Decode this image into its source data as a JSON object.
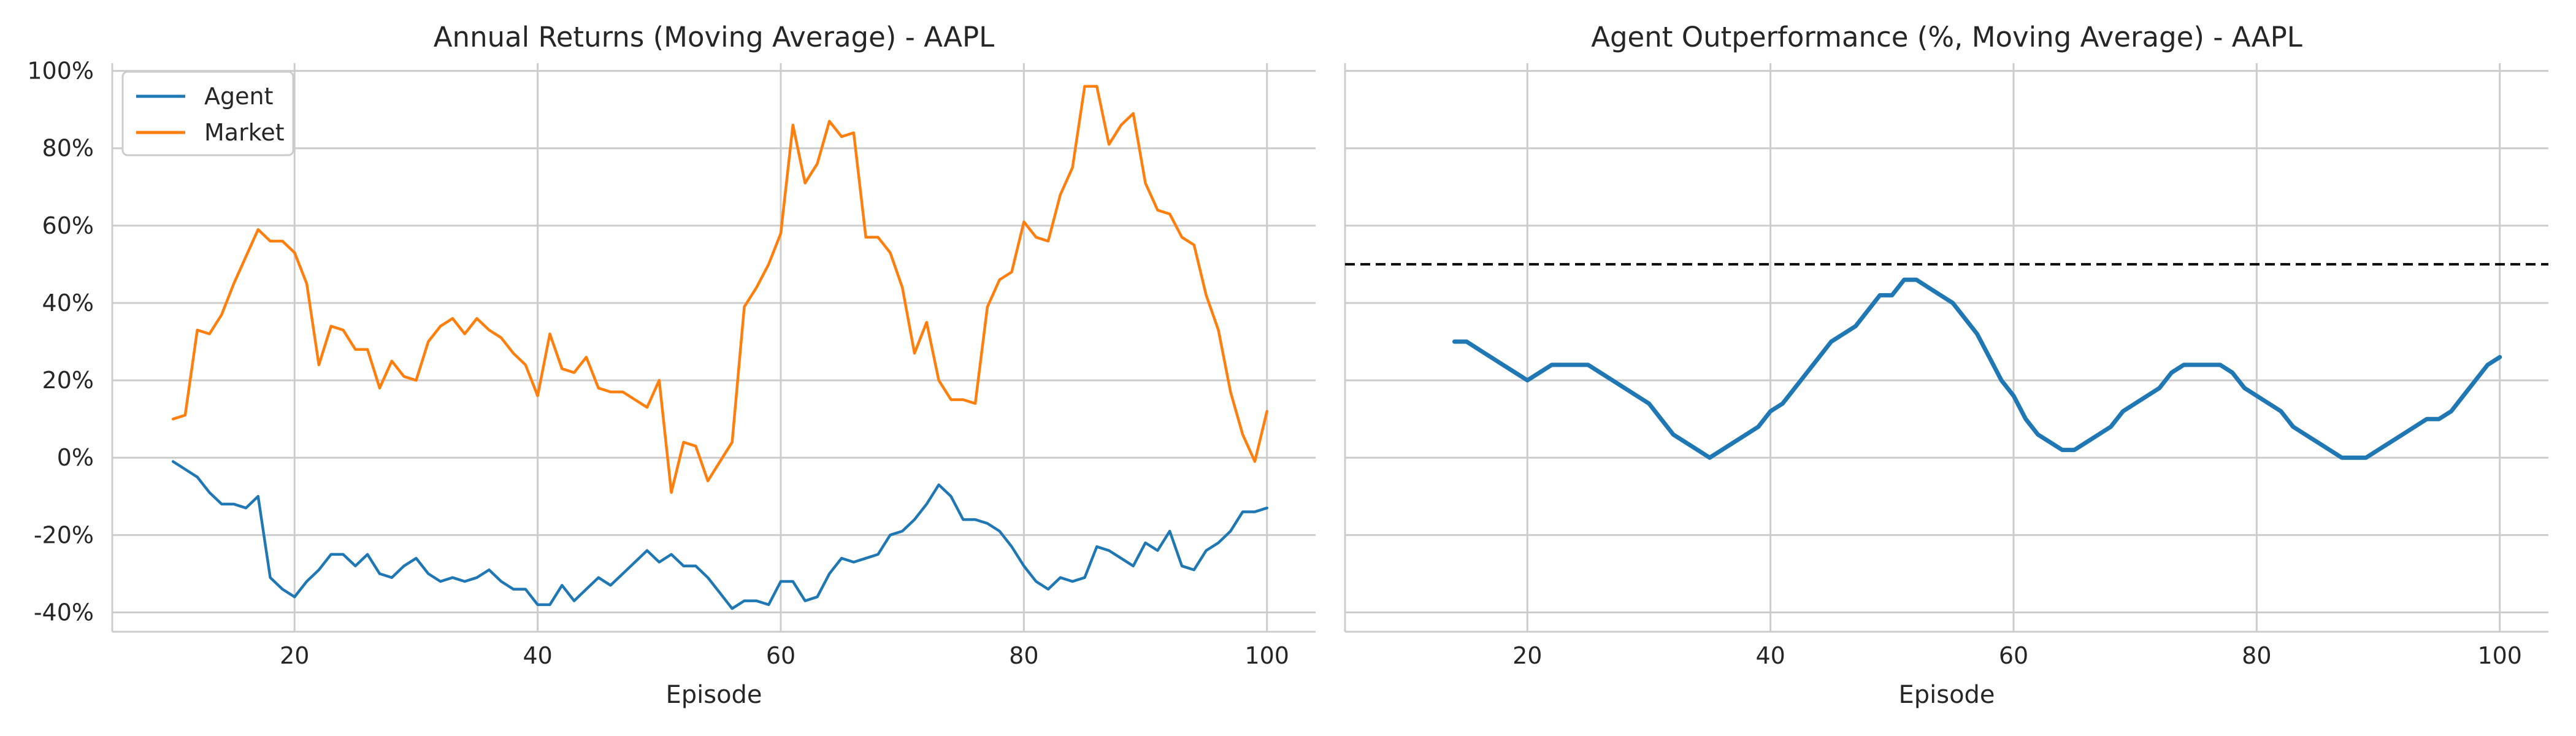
{
  "chart_data": [
    {
      "type": "line",
      "title": "Annual Returns (Moving Average) - AAPL",
      "xlabel": "Episode",
      "ylabel": "",
      "xlim": [
        5,
        104
      ],
      "ylim": [
        -45,
        102
      ],
      "xticks": [
        20,
        40,
        60,
        80,
        100
      ],
      "xtick_labels": [
        "20",
        "40",
        "60",
        "80",
        "100"
      ],
      "yticks": [
        -40,
        -20,
        0,
        20,
        40,
        60,
        80,
        100
      ],
      "ytick_labels": [
        "-40%",
        "-20%",
        "0%",
        "20%",
        "40%",
        "60%",
        "80%",
        "100%"
      ],
      "grid": true,
      "legend_position": "top-left",
      "x": [
        10,
        11,
        12,
        13,
        14,
        15,
        16,
        17,
        18,
        19,
        20,
        21,
        22,
        23,
        24,
        25,
        26,
        27,
        28,
        29,
        30,
        31,
        32,
        33,
        34,
        35,
        36,
        37,
        38,
        39,
        40,
        41,
        42,
        43,
        44,
        45,
        46,
        47,
        48,
        49,
        50,
        51,
        52,
        53,
        54,
        55,
        56,
        57,
        58,
        59,
        60,
        61,
        62,
        63,
        64,
        65,
        66,
        67,
        68,
        69,
        70,
        71,
        72,
        73,
        74,
        75,
        76,
        77,
        78,
        79,
        80,
        81,
        82,
        83,
        84,
        85,
        86,
        87,
        88,
        89,
        90,
        91,
        92,
        93,
        94,
        95,
        96,
        97,
        98,
        99,
        100
      ],
      "series": [
        {
          "name": "Agent",
          "color": "#1f77b4",
          "values": [
            -1,
            -3,
            -5,
            -9,
            -12,
            -12,
            -13,
            -10,
            -31,
            -34,
            -36,
            -32,
            -29,
            -25,
            -25,
            -28,
            -25,
            -30,
            -31,
            -28,
            -26,
            -30,
            -32,
            -31,
            -32,
            -31,
            -29,
            -32,
            -34,
            -34,
            -38,
            -38,
            -33,
            -37,
            -34,
            -31,
            -33,
            -30,
            -27,
            -24,
            -27,
            -25,
            -28,
            -28,
            -31,
            -35,
            -39,
            -37,
            -37,
            -38,
            -32,
            -32,
            -37,
            -36,
            -30,
            -26,
            -27,
            -26,
            -25,
            -20,
            -19,
            -16,
            -12,
            -7,
            -10,
            -16,
            -16,
            -17,
            -19,
            -23,
            -28,
            -32,
            -34,
            -31,
            -32,
            -31,
            -23,
            -24,
            -26,
            -28,
            -22,
            -24,
            -19,
            -28,
            -29,
            -24,
            -22,
            -19,
            -14,
            -14,
            -13
          ]
        },
        {
          "name": "Market",
          "color": "#ff7f0e",
          "values": [
            10,
            11,
            33,
            32,
            37,
            45,
            52,
            59,
            56,
            56,
            53,
            45,
            24,
            34,
            33,
            28,
            28,
            18,
            25,
            21,
            20,
            30,
            34,
            36,
            32,
            36,
            33,
            31,
            27,
            24,
            16,
            32,
            23,
            22,
            26,
            18,
            17,
            17,
            15,
            13,
            20,
            -9,
            4,
            3,
            -6,
            -1,
            4,
            39,
            44,
            50,
            58,
            86,
            71,
            76,
            87,
            83,
            84,
            57,
            57,
            53,
            44,
            27,
            35,
            20,
            15,
            15,
            14,
            39,
            46,
            48,
            61,
            57,
            56,
            68,
            75,
            96,
            96,
            81,
            86,
            89,
            71,
            64,
            63,
            57,
            55,
            42,
            33,
            17,
            6,
            -1,
            12
          ]
        }
      ]
    },
    {
      "type": "line",
      "title": "Agent Outperformance (%, Moving Average) - AAPL",
      "xlabel": "Episode",
      "ylabel": "",
      "xlim": [
        5,
        104
      ],
      "ylim": [
        -45,
        102
      ],
      "xticks": [
        20,
        40,
        60,
        80,
        100
      ],
      "xtick_labels": [
        "20",
        "40",
        "60",
        "80",
        "100"
      ],
      "grid": true,
      "reference_line": {
        "y": 50,
        "style": "dashed",
        "color": "#000000"
      },
      "x": [
        14,
        15,
        16,
        17,
        18,
        19,
        20,
        21,
        22,
        23,
        24,
        25,
        26,
        27,
        28,
        29,
        30,
        31,
        32,
        33,
        34,
        35,
        36,
        37,
        38,
        39,
        40,
        41,
        42,
        43,
        44,
        45,
        46,
        47,
        48,
        49,
        50,
        51,
        52,
        53,
        54,
        55,
        56,
        57,
        58,
        59,
        60,
        61,
        62,
        63,
        64,
        65,
        66,
        67,
        68,
        69,
        70,
        71,
        72,
        73,
        74,
        75,
        76,
        77,
        78,
        79,
        80,
        81,
        82,
        83,
        84,
        85,
        86,
        87,
        88,
        89,
        90,
        91,
        92,
        93,
        94,
        95,
        96,
        97,
        98,
        99,
        100
      ],
      "series": [
        {
          "color": "#1f77b4",
          "values": [
            30,
            30,
            28,
            26,
            24,
            22,
            20,
            22,
            24,
            24,
            24,
            24,
            22,
            20,
            18,
            16,
            14,
            10,
            6,
            4,
            2,
            0,
            2,
            4,
            6,
            8,
            12,
            14,
            18,
            22,
            26,
            30,
            32,
            34,
            38,
            42,
            42,
            46,
            46,
            44,
            42,
            40,
            36,
            32,
            26,
            20,
            16,
            10,
            6,
            4,
            2,
            2,
            4,
            6,
            8,
            12,
            14,
            16,
            18,
            22,
            24,
            24,
            24,
            24,
            22,
            18,
            16,
            14,
            12,
            8,
            6,
            4,
            2,
            0,
            0,
            0,
            2,
            4,
            6,
            8,
            10,
            10,
            12,
            16,
            20,
            24,
            26
          ]
        }
      ]
    }
  ]
}
